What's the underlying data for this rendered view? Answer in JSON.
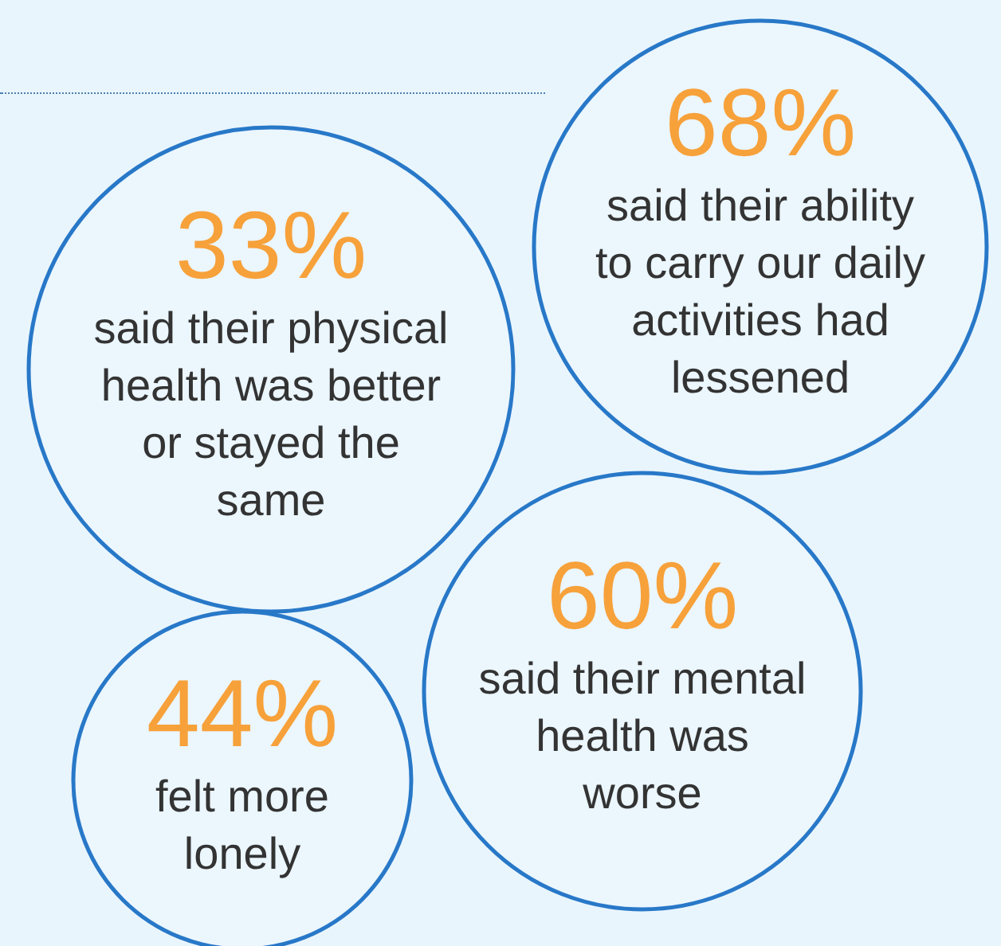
{
  "chart_data": {
    "type": "other",
    "categories": [
      "said their physical health was better or stayed the same",
      "said their ability to carry our daily activities had lessened",
      "said their mental health was worse",
      "felt more lonely"
    ],
    "values": [
      33,
      68,
      60,
      44
    ],
    "value_labels": [
      "33%",
      "68%",
      "60%",
      "44%"
    ],
    "color": "#2878c8"
  }
}
